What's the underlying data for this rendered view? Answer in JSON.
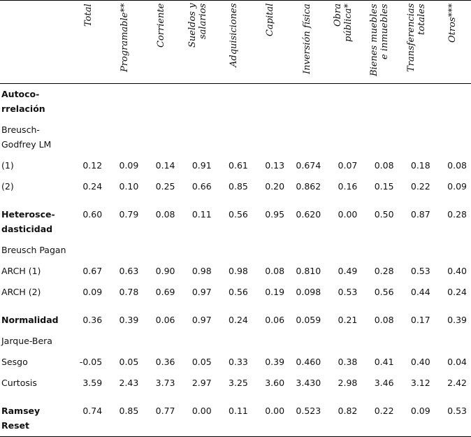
{
  "table": {
    "columns": [
      [
        "Total"
      ],
      [
        "Programable**"
      ],
      [
        "Corriente"
      ],
      [
        "Sueldos y",
        "salarios"
      ],
      [
        "Adquisiciones"
      ],
      [
        "Capital"
      ],
      [
        "Inversión física"
      ],
      [
        "Obra",
        "pública*"
      ],
      [
        "Bienes muebles",
        "e inmuebles"
      ],
      [
        "Transferencias",
        "totales"
      ],
      [
        "Otros***"
      ]
    ],
    "rows": [
      {
        "label": [
          "Autoco-",
          "rrelación"
        ],
        "bold": true,
        "values": []
      },
      {
        "label": [
          "Breusch-",
          "Godfrey LM"
        ],
        "values": []
      },
      {
        "label": [
          "(1)"
        ],
        "values": [
          "0.12",
          "0.09",
          "0.14",
          "0.91",
          "0.61",
          "0.13",
          "0.674",
          "0.07",
          "0.08",
          "0.18",
          "0.08"
        ]
      },
      {
        "label": [
          "(2)"
        ],
        "values": [
          "0.24",
          "0.10",
          "0.25",
          "0.66",
          "0.85",
          "0.20",
          "0.862",
          "0.16",
          "0.15",
          "0.22",
          "0.09"
        ]
      },
      {
        "label": [
          "Heterosce-",
          "dasticidad"
        ],
        "bold": true,
        "values": [
          "0.60",
          "0.79",
          "0.08",
          "0.11",
          "0.56",
          "0.95",
          "0.620",
          "0.00",
          "0.50",
          "0.87",
          "0.28"
        ]
      },
      {
        "label": [
          "Breusch Pagan"
        ],
        "values": []
      },
      {
        "label": [
          "ARCH (1)"
        ],
        "values": [
          "0.67",
          "0.63",
          "0.90",
          "0.98",
          "0.98",
          "0.08",
          "0.810",
          "0.49",
          "0.28",
          "0.53",
          "0.40"
        ]
      },
      {
        "label": [
          "ARCH (2)"
        ],
        "values": [
          "0.09",
          "0.78",
          "0.69",
          "0.97",
          "0.56",
          "0.19",
          "0.098",
          "0.53",
          "0.56",
          "0.44",
          "0.24"
        ]
      },
      {
        "label": [
          "Normalidad"
        ],
        "bold": true,
        "values": [
          "0.36",
          "0.39",
          "0.06",
          "0.97",
          "0.24",
          "0.06",
          "0.059",
          "0.21",
          "0.08",
          "0.17",
          "0.39"
        ]
      },
      {
        "label": [
          "Jarque-Bera"
        ],
        "values": []
      },
      {
        "label": [
          "Sesgo"
        ],
        "values": [
          "-0.05",
          "0.05",
          "0.36",
          "0.05",
          "0.33",
          "0.39",
          "0.460",
          "0.38",
          "0.41",
          "0.40",
          "0.04"
        ]
      },
      {
        "label": [
          "Curtosis"
        ],
        "values": [
          "3.59",
          "2.43",
          "3.73",
          "2.97",
          "3.25",
          "3.60",
          "3.430",
          "2.98",
          "3.46",
          "3.12",
          "2.42"
        ]
      },
      {
        "label": [
          "Ramsey",
          "Reset"
        ],
        "bold": true,
        "values": [
          "0.74",
          "0.85",
          "0.77",
          "0.00",
          "0.11",
          "0.00",
          "0.523",
          "0.82",
          "0.22",
          "0.09",
          "0.53"
        ]
      }
    ]
  }
}
